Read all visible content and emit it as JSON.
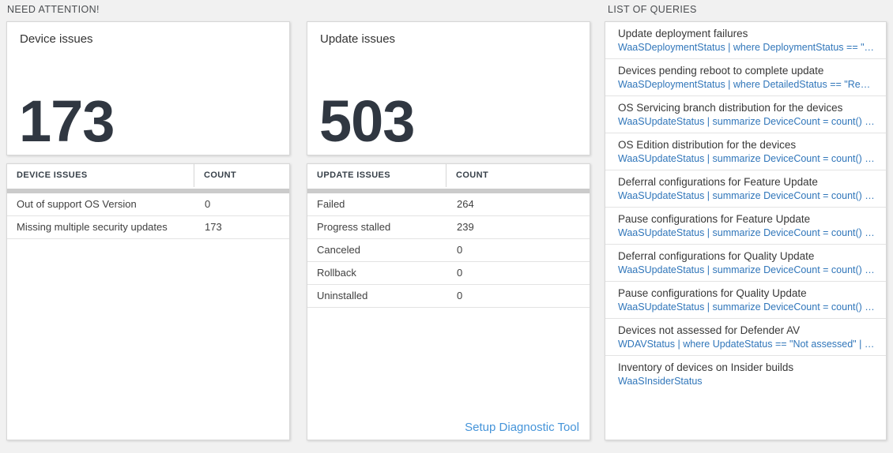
{
  "need_attention": {
    "header": "NEED ATTENTION!",
    "device_card": {
      "title": "Device issues",
      "count": "173"
    },
    "device_table": {
      "columns": [
        "DEVICE ISSUES",
        "COUNT"
      ],
      "rows": [
        {
          "label": "Out of support OS Version",
          "count": "0"
        },
        {
          "label": "Missing multiple security updates",
          "count": "173"
        }
      ]
    },
    "update_card": {
      "title": "Update issues",
      "count": "503"
    },
    "update_table": {
      "columns": [
        "UPDATE ISSUES",
        "COUNT"
      ],
      "rows": [
        {
          "label": "Failed",
          "count": "264"
        },
        {
          "label": "Progress stalled",
          "count": "239"
        },
        {
          "label": "Canceled",
          "count": "0"
        },
        {
          "label": "Rollback",
          "count": "0"
        },
        {
          "label": "Uninstalled",
          "count": "0"
        }
      ],
      "footer_link": "Setup Diagnostic Tool"
    }
  },
  "queries": {
    "header": "LIST OF QUERIES",
    "items": [
      {
        "title": "Update deployment failures",
        "query": "WaaSDeploymentStatus | where DeploymentStatus == \"Failed\" |..."
      },
      {
        "title": "Devices pending reboot to complete update",
        "query": "WaaSDeploymentStatus | where DetailedStatus == \"Reboot pend..."
      },
      {
        "title": "OS Servicing branch distribution for the devices",
        "query": "WaaSUpdateStatus | summarize DeviceCount = count() by OSSer..."
      },
      {
        "title": "OS Edition distribution for the devices",
        "query": "WaaSUpdateStatus | summarize DeviceCount = count() by OSEdit..."
      },
      {
        "title": "Deferral configurations for Feature Update",
        "query": "WaaSUpdateStatus | summarize DeviceCount = count() by Featur..."
      },
      {
        "title": "Pause configurations for Feature Update",
        "query": "WaaSUpdateStatus | summarize DeviceCount = count() by Featur..."
      },
      {
        "title": "Deferral configurations for Quality Update",
        "query": "WaaSUpdateStatus | summarize DeviceCount = count() by Qualit..."
      },
      {
        "title": "Pause configurations for Quality Update",
        "query": "WaaSUpdateStatus | summarize DeviceCount = count() by Qualit..."
      },
      {
        "title": "Devices not assessed for Defender AV",
        "query": "WDAVStatus | where UpdateStatus == \"Not assessed\" | render ta..."
      },
      {
        "title": "Inventory of devices on Insider builds",
        "query": "WaaSInsiderStatus"
      }
    ]
  },
  "colors": {
    "page_background": "#f1f1f1",
    "link_blue": "#4594d9",
    "query_blue": "#3076ba",
    "number_color": "#303741"
  }
}
